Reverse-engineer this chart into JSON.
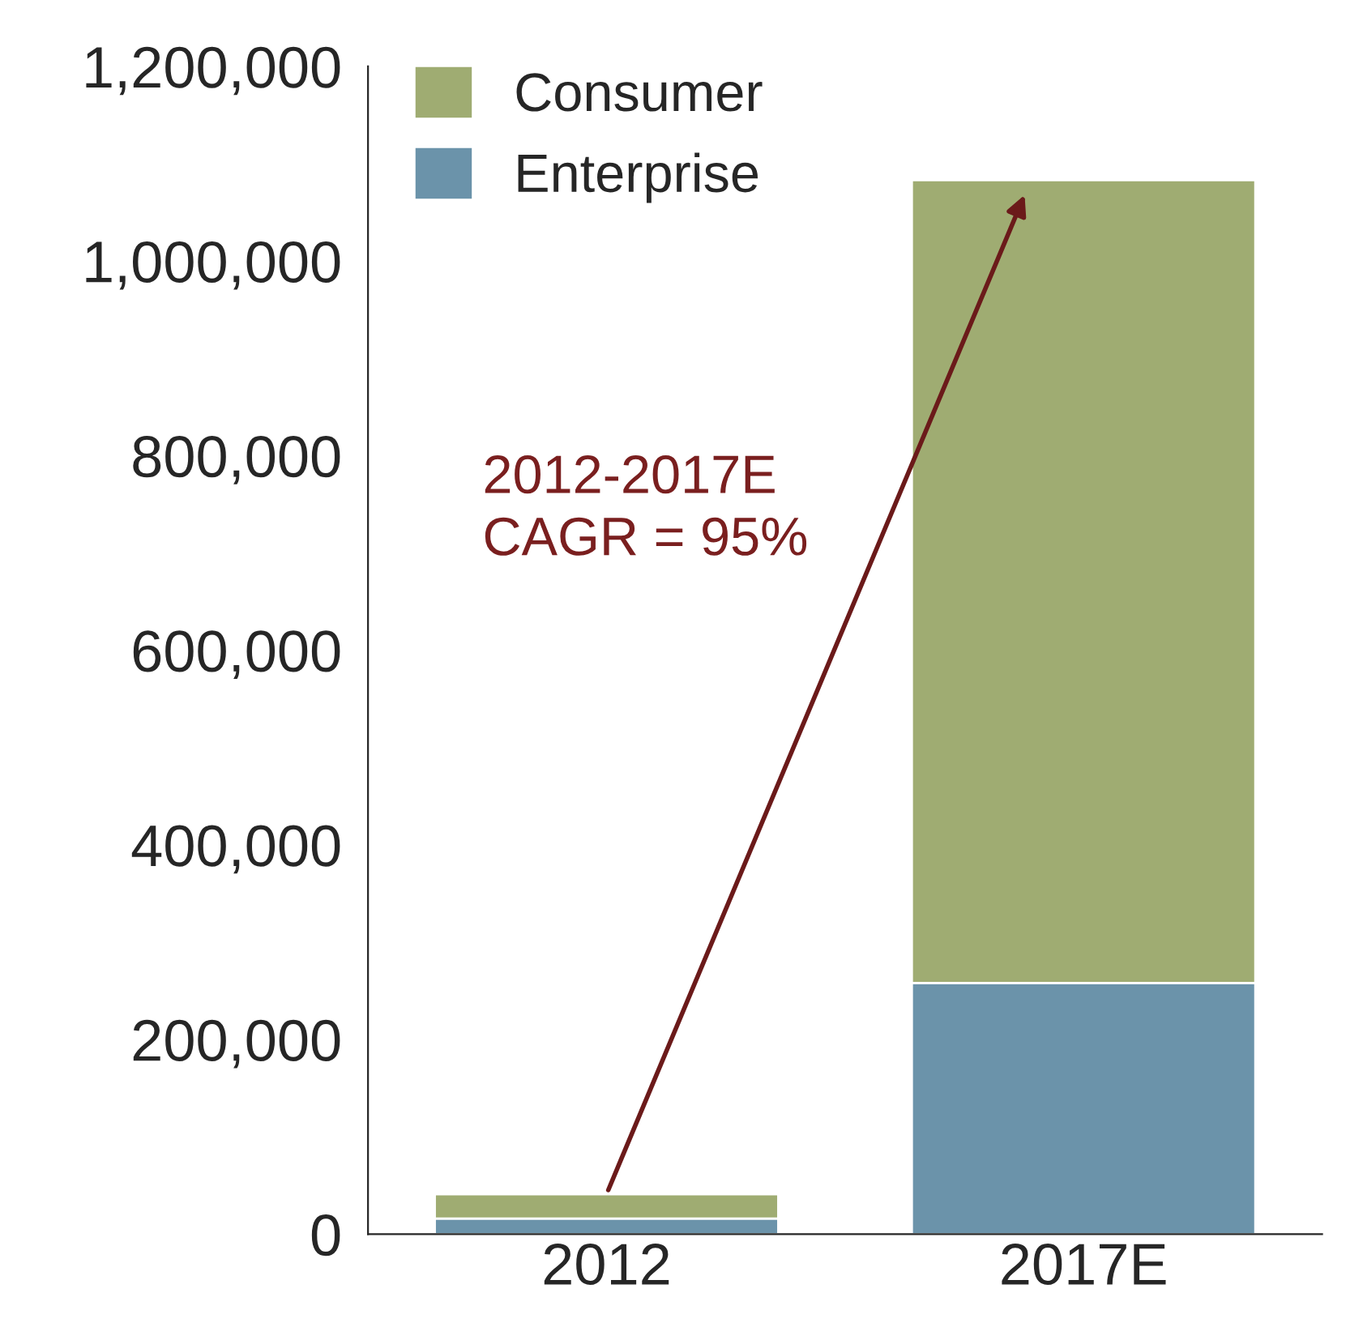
{
  "chart_data": {
    "type": "bar",
    "stacked": true,
    "categories": [
      "2012",
      "2017E"
    ],
    "series": [
      {
        "name": "Enterprise",
        "color": "#6b93aa",
        "values": [
          16000,
          258000
        ]
      },
      {
        "name": "Consumer",
        "color": "#9fac72",
        "values": [
          25000,
          825000
        ]
      }
    ],
    "ylim": [
      0,
      1200000
    ],
    "yticks": [
      {
        "value": 0,
        "label": "0"
      },
      {
        "value": 200000,
        "label": "200,000"
      },
      {
        "value": 400000,
        "label": "400,000"
      },
      {
        "value": 600000,
        "label": "600,000"
      },
      {
        "value": 800000,
        "label": "800,000"
      },
      {
        "value": 1000000,
        "label": "1,000,000"
      },
      {
        "value": 1200000,
        "label": "1,200,000"
      }
    ],
    "grid": false,
    "legend": "top left",
    "annotations": [
      "2012-2017E\nCAGR = 95%"
    ]
  }
}
